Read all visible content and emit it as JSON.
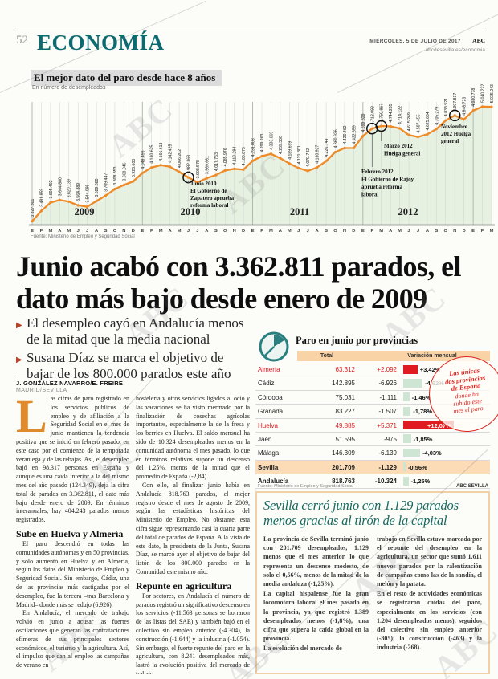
{
  "page": {
    "number": "52",
    "section": "ECONOMÍA",
    "date": "MIÉRCOLES, 5 DE JULIO DE 2017",
    "brand": "ABC",
    "site": "abcdesevilla.es/economia",
    "watermark": "ABC"
  },
  "colors": {
    "teal": "#0c6b70",
    "line_orange": "#ee8b28",
    "area_green": "#e7f1e2",
    "table_red": "#e11b22",
    "bar_green": "#cfe5d3",
    "peach_header": "#f9d3a5",
    "peach_row": "#fbdcb6",
    "drop_cap_orange": "#e08a2e",
    "substory_teal": "#15695f"
  },
  "chart": {
    "heading": "El mejor dato del paro desde hace 8 años",
    "subheading": "En número de desempleados",
    "source": "Fuente: Ministerio de Empleo y Seguridad Social"
  },
  "chart_data": {
    "type": "area",
    "title": "El mejor dato del paro desde hace 8 años",
    "ylabel": "número de desempleados",
    "ylim": [
      3300000,
      5050000
    ],
    "grid": "monthly-vertical",
    "month_initials": [
      "E",
      "F",
      "M",
      "A",
      "M",
      "J",
      "J",
      "A",
      "S",
      "O",
      "N",
      "D"
    ],
    "years": [
      {
        "label": "2009",
        "values": [
          3327801,
          3481859,
          3605402,
          3644880,
          3620139,
          3564889,
          3544095,
          3629080,
          3709447,
          3808353,
          3868946,
          3923603
        ]
      },
      {
        "label": "2010",
        "values": [
          4048493,
          4130625,
          4166613,
          4142425,
          4066202,
          3982368,
          3908578,
          3969661,
          4017763,
          4085976,
          4110294,
          4100073
        ]
      },
      {
        "label": "2011",
        "values": [
          4231003,
          4299263,
          4333669,
          4269360,
          4189659,
          4121801,
          4079742,
          4130927,
          4226744,
          4360926,
          4420462,
          4422359
        ]
      },
      {
        "label": "2012",
        "values": [
          4599829,
          4712098,
          4750867,
          4744235,
          4714122,
          4615269,
          4587455,
          4625634,
          4705279,
          4833521,
          4907817,
          4848723
        ]
      },
      {
        "label": "",
        "values": [
          4980778,
          5040222,
          5035243
        ]
      }
    ],
    "annotations": [
      {
        "index": 17,
        "lines": [
          "Junio 2010",
          "El Gobierno de",
          "Zapatero aprueba",
          "reforma laboral"
        ]
      },
      {
        "index": 37,
        "lines": [
          "Febrero 2012",
          "El Gobierno de Rajoy",
          "aprueba reforma",
          "laboral"
        ]
      },
      {
        "index": 38,
        "lines": [
          "Marzo 2012",
          "Huelga general"
        ]
      },
      {
        "index": 46,
        "lines": [
          "Noviembre",
          "2012 Huelga",
          "general"
        ]
      }
    ]
  },
  "headline": "Junio acabó con 3.362.811 parados, el dato más bajo desde enero de 2009",
  "bullets": [
    "El desempleo cayó en Andalucía menos de la mitad que la media nacional",
    "Susana Díaz se marca el objetivo de bajar de los 800.000 parados este año"
  ],
  "byline": {
    "authors": "J. GONZÁLEZ NAVARRO/E. FREIRE",
    "location": "MADRID/SEVILLA"
  },
  "article": {
    "drop_cap": "L",
    "col1": [
      {
        "type": "p",
        "text": "as cifras de paro registrado en los servicios públicos de empleo y de afiliación a la Seguridad Social en el mes de junio mantienen la tendencia positiva que se inició en febrero pasado, en este caso por el comienzo de la temporada veraniega y de las rebajas. Así, el desempleo bajó en 98.317 personas en España y aunque es una caída inferior a la del mismo mes del año pasado (124.349), deja la cifra total de parados en 3.362.811, el dato más bajo desde enero de 2009. En términos interanuales, hay 404.243 parados menos registrados."
      },
      {
        "type": "h",
        "text": "Sube en Huelva y Almería"
      },
      {
        "type": "p",
        "text": "El paro descendió en todas las comunidades autónomas y en 50 provincias, y solo aumentó en Huelva y en Almería, según los datos del Ministerio de Empleo y Seguridad Social. Sin embargo, Cádiz, una de las provincias más castigadas por el desempleo, fue la tercera –tras Barcelona y Madrid– donde más se redujo (6.926)."
      },
      {
        "type": "p",
        "text": "En Andalucía, el mercado de trabajo volvió en junio a acusar las fuertes oscilaciones que generan las contrataciones efímeras de sus principales sectores económicos, el turismo y la agricultura. Así, el impulso que dan al empleo las campañas de verano en"
      }
    ],
    "col2": [
      {
        "type": "p",
        "text": "hostelería y otros servicios ligados al ocio y las vacaciones se ha visto mermado por la finalización de cosechas agrícolas importantes, especialmente la de la fresa y los berries en Huelva. El saldo mensual ha sido de 10.324 desempleados menos en la comunidad autónoma el mes pasado, lo que en términos relativos supone un descenso del 1,25%, menos de la mitad que el promedio de España (-2,84)."
      },
      {
        "type": "p",
        "text": "Con ello, al finalizar junio había en Andalucía 818.763 parados, el mejor registro desde el mes de agosto de 2009, según las estadísticas históricas del Ministerio de Empleo. No obstante, esta cifra sigue representando casi la cuarta parte del total de parados de España. A la vista de este dato, la presidenta de la Junta, Susana Díaz, se marcó ayer el objetivo de bajar del listón de los 800.000 parados en la Comunidad este mismo año."
      },
      {
        "type": "h",
        "text": "Repunte en agricultura"
      },
      {
        "type": "p",
        "text": "Por sectores, en Andalucía el número de parados registró un significativo descenso en los servicios (-11.563 personas se borraron de las listas del SAE) y también bajó en el colectivo sin empleo anterior (-4.304), la construcción (-1.644) y la industria (-1.054). Sin embargo, el fuerte repunte del paro en la agricultura, con 8.241 desempleados más, lastró la evolución positiva del mercado de trabajo."
      },
      {
        "type": "p",
        "text": "Este aumento del paro agrario es-"
      }
    ]
  },
  "table": {
    "title": "Paro en junio por provincias",
    "columns": [
      "Total",
      "Variación mensual"
    ],
    "rows": [
      {
        "name": "Almería",
        "total": "63.312",
        "change": "+2.092",
        "pct": "+3,42%",
        "pct_value": 3.42,
        "highlight": "red"
      },
      {
        "name": "Cádiz",
        "total": "142.895",
        "change": "-6.926",
        "pct": "-4,62%",
        "pct_value": -4.62
      },
      {
        "name": "Córdoba",
        "total": "75.031",
        "change": "-1.111",
        "pct": "-1,46%",
        "pct_value": -1.46
      },
      {
        "name": "Granada",
        "total": "83.227",
        "change": "-1.507",
        "pct": "-1,78%",
        "pct_value": -1.78
      },
      {
        "name": "Huelva",
        "total": "49.885",
        "change": "+5.371",
        "pct": "+12,07%",
        "pct_value": 12.07,
        "highlight": "red"
      },
      {
        "name": "Jaén",
        "total": "51.595",
        "change": "-975",
        "pct": "-1,85%",
        "pct_value": -1.85
      },
      {
        "name": "Málaga",
        "total": "146.309",
        "change": "-6.139",
        "pct": "-4,03%",
        "pct_value": -4.03
      },
      {
        "name": "Sevilla",
        "total": "201.709",
        "change": "-1.129",
        "pct": "-0,56%",
        "pct_value": -0.56,
        "bold": true,
        "row_bg": "peach"
      },
      {
        "name": "Andalucía",
        "total": "818.763",
        "change": "-10.324",
        "pct": "-1,25%",
        "pct_value": -1.25,
        "bold": true
      }
    ],
    "source": "Fuente: Ministerio de Empleo y Seguridad Social",
    "credit": "ABC SEVILLA",
    "callout": {
      "bold_lines": [
        "Las únicas",
        "dos provincias",
        "de España"
      ],
      "lines": [
        "donde ha",
        "subido este",
        "mes el paro"
      ]
    }
  },
  "substory": {
    "headline": "Sevilla cerró junio con 1.129 parados menos gracias al tirón de la capital",
    "col1": [
      "La provincia de Sevilla terminó junio con 201.709 desempleados, 1.129 menos que el mes anterior, lo que representa un descenso modesto, de solo el 0,56%, menos de la mitad de la media andaluza (-1,25%).",
      "La capital hispalense fue la gran locomotora laboral el mes pasado en la provincia, ya que registró 1.389 desempleados menos (-1,8%), una cifra que supera la caída global en la provincia.",
      "La evolución del mercado de"
    ],
    "col2": [
      "trabajo en Sevilla estuvo marcada por el repunte del desempleo en la agricultura, un sector que sumó 1.611 nuevos parados por la ralentización de campañas como las de la sandía, el melón y la patata.",
      "En el resto de actividades económicas se registraron caídas del paro, especialmente en los servicios (con 1.204 desempleados menos), seguidos del colectivo sin empleo anterior (-805); la construcción (-463) y la industria (-268)."
    ]
  }
}
